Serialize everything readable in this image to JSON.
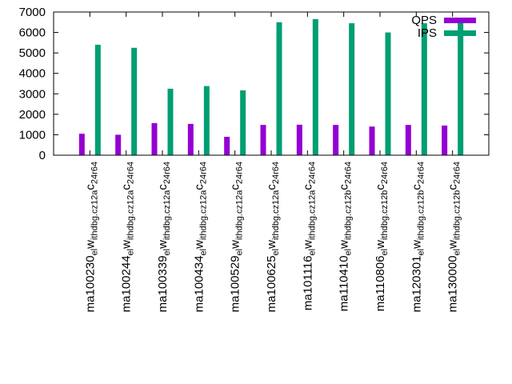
{
  "chart_data": {
    "type": "bar",
    "title": "",
    "xlabel": "",
    "ylabel": "",
    "ylim": [
      0,
      7000
    ],
    "yticks": [
      0,
      1000,
      2000,
      3000,
      4000,
      5000,
      6000,
      7000
    ],
    "legend_position": "top-right",
    "grid": false,
    "categories": [
      {
        "label_parts": [
          "ma100230",
          "el",
          "w",
          "ithdbg.cz12a",
          "c",
          "24r64"
        ]
      },
      {
        "label_parts": [
          "ma100244",
          "el",
          "w",
          "ithdbg.cz12a",
          "c",
          "24r64"
        ]
      },
      {
        "label_parts": [
          "ma100339",
          "el",
          "w",
          "ithdbg.cz12a",
          "c",
          "24r64"
        ]
      },
      {
        "label_parts": [
          "ma100434",
          "el",
          "w",
          "ithdbg.cz12a",
          "c",
          "24r64"
        ]
      },
      {
        "label_parts": [
          "ma100529",
          "el",
          "w",
          "ithdbg.cz12a",
          "c",
          "24r64"
        ]
      },
      {
        "label_parts": [
          "ma100625",
          "el",
          "w",
          "ithdbg.cz12a",
          "c",
          "24r64"
        ]
      },
      {
        "label_parts": [
          "ma101116",
          "el",
          "w",
          "ithdbg.cz12a",
          "c",
          "24r64"
        ]
      },
      {
        "label_parts": [
          "ma110410",
          "el",
          "w",
          "ithdbg.cz12b",
          "c",
          "24r64"
        ]
      },
      {
        "label_parts": [
          "ma110806",
          "el",
          "w",
          "ithdbg.cz12b",
          "c",
          "24r64"
        ]
      },
      {
        "label_parts": [
          "ma120301",
          "el",
          "w",
          "ithdbg.cz12b",
          "c",
          "24r64"
        ]
      },
      {
        "label_parts": [
          "ma130000",
          "el",
          "w",
          "ithdbg.cz12b",
          "c",
          "24r64"
        ]
      }
    ],
    "series": [
      {
        "name": "QPS",
        "color": "#9400d3",
        "values": [
          1050,
          1000,
          1570,
          1530,
          900,
          1480,
          1490,
          1480,
          1400,
          1480,
          1450
        ]
      },
      {
        "name": "IPS",
        "color": "#009e73",
        "values": [
          5400,
          5250,
          3250,
          3380,
          3170,
          6500,
          6650,
          6450,
          6000,
          6450,
          6500
        ]
      }
    ]
  }
}
